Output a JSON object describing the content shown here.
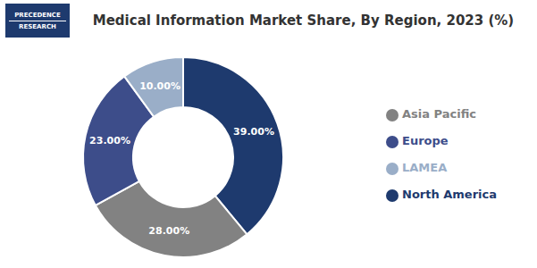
{
  "chart_data": {
    "type": "pie",
    "title": "Medical Information Market Share, By Region, 2023 (%)",
    "categories": [
      "North America",
      "Asia Pacific",
      "Europe",
      "LAMEA"
    ],
    "values": [
      39.0,
      28.0,
      23.0,
      10.0
    ],
    "value_labels": [
      "39.00%",
      "28.00%",
      "23.00%",
      "10.00%"
    ],
    "colors": [
      "#1e3a6e",
      "#828282",
      "#3d4d8a",
      "#9aaec8"
    ],
    "data_labels": true,
    "legend": "right",
    "annotations": [
      "PRECEDENCE",
      "RESEARCH"
    ]
  }
}
